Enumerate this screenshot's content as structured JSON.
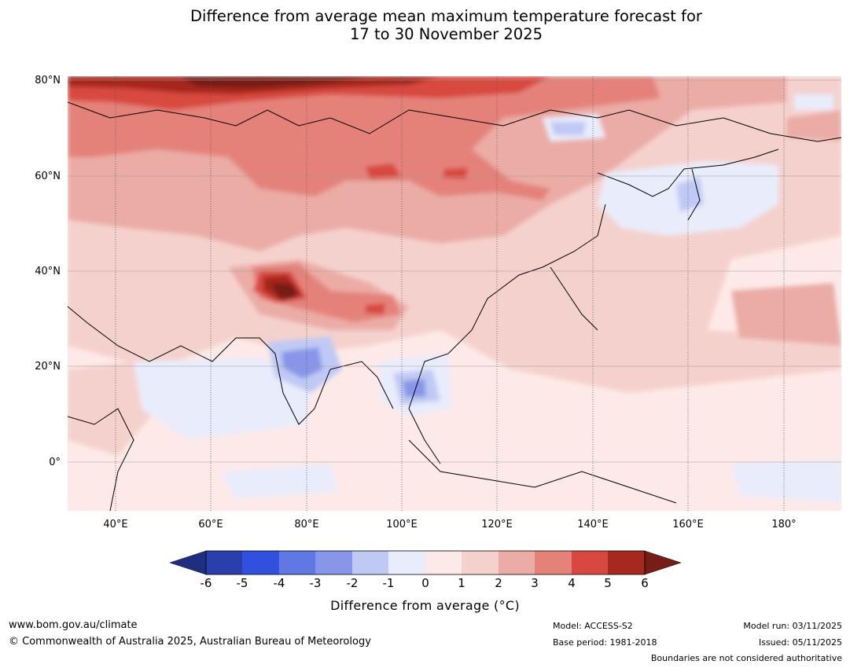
{
  "title": {
    "line1": "Difference from average mean maximum temperature forecast for",
    "line2": "17 to 30 November 2025"
  },
  "map": {
    "lat_labels": [
      "80°N",
      "60°N",
      "40°N",
      "20°N",
      "0°"
    ],
    "lon_labels": [
      "40°E",
      "60°E",
      "80°E",
      "100°E",
      "120°E",
      "140°E",
      "160°E",
      "180°"
    ],
    "extent": {
      "lon_min": 30,
      "lon_max": 190,
      "lat_min": -10,
      "lat_max": 80
    }
  },
  "colorbar": {
    "ticks": [
      "-6",
      "-5",
      "-4",
      "-3",
      "-2",
      "-1",
      "0",
      "1",
      "2",
      "3",
      "4",
      "5",
      "6"
    ],
    "label": "Difference from average (°C)",
    "colors": {
      "below_min": "#1e2f80",
      "n6_n5": "#2a3fac",
      "n5_n4": "#3150de",
      "n4_n3": "#5f78e3",
      "n3_n2": "#8796e8",
      "n2_n1": "#c0c9f4",
      "n1_0": "#e9ecfb",
      "0_1": "#fdeae8",
      "1_2": "#f5d1cd",
      "2_3": "#ebaca6",
      "3_4": "#e4827a",
      "4_5": "#d84840",
      "5_6": "#a6281f",
      "above_max": "#761d17"
    }
  },
  "footer": {
    "website": "www.bom.gov.au/climate",
    "copyright": "© Commonwealth of Australia 2025, Australian Bureau of Meteorology",
    "model": "Model: ACCESS-S2",
    "base_period": "Base period: 1981-2018",
    "model_run": "Model run: 03/11/2025",
    "issued": "Issued: 05/11/2025",
    "disclaimer": "Boundaries are not considered authoritative"
  }
}
